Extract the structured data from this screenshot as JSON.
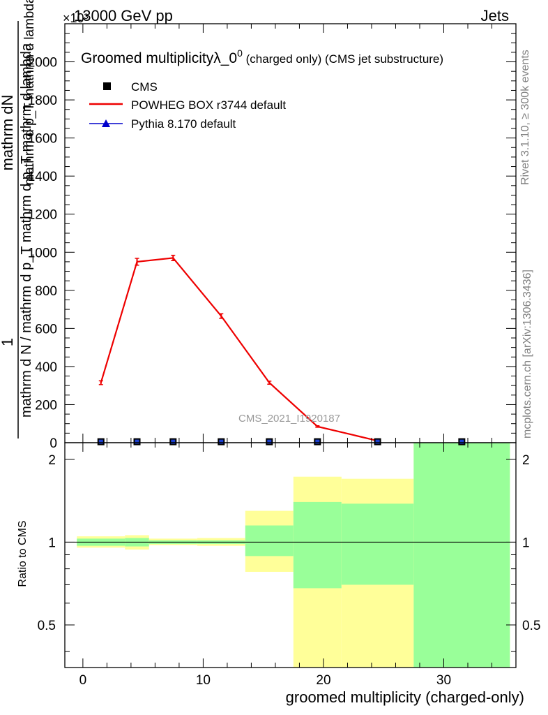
{
  "header": {
    "left": "13000 GeV pp",
    "right": "Jets",
    "exponent": "×10³"
  },
  "side": {
    "rivet": "Rivet 3.1.10, ≥ 300k events",
    "mcplots": "mcplots.cern.ch [arXiv:1306.3436]"
  },
  "chart_data": {
    "type": "line",
    "title": "Groomed multiplicityλ_0⁰ (charged only) (CMS jet substructure)",
    "title_main": "Groomed multiplicityλ_0",
    "title_sup": "0",
    "title_rest": " (charged only) (CMS jet substructure)",
    "watermark": "CMS_2021_I1920187",
    "xlabel": "groomed multiplicity (charged-only)",
    "ylabel_num": "1",
    "ylabel_num2": "mathrm dN",
    "ylabel_den": "mathrm d N / mathrm d p_T mathrm d p_T mathrm d lambda",
    "ylabel_den2": "mathrm d p_T  mathrm d lambda",
    "ratio_ylabel": "Ratio to CMS",
    "xlim": [
      -1.5,
      36
    ],
    "ylim": [
      0,
      2200
    ],
    "y_scale_note": "×10³",
    "xticks": [
      0,
      10,
      20,
      30
    ],
    "yticks": [
      0,
      200,
      400,
      600,
      800,
      1000,
      1200,
      1400,
      1600,
      1800,
      2000
    ],
    "ratio_ylim": [
      0.35,
      2.3
    ],
    "ratio_yticks": [
      0.5,
      1,
      2
    ],
    "ratio_yticklabels": [
      "0.5",
      "1",
      "2"
    ],
    "legend": [
      {
        "name": "CMS",
        "color": "#000000",
        "marker": "square"
      },
      {
        "name": "POWHEG BOX r3744 default",
        "color": "#ee0000",
        "marker": "line"
      },
      {
        "name": "Pythia 8.170 default",
        "color": "#0000cc",
        "marker": "triangle"
      }
    ],
    "series": [
      {
        "name": "CMS",
        "color": "#000000",
        "x": [
          1.5,
          4.5,
          7.5,
          11.5,
          15.5,
          19.5,
          24.5,
          31.5
        ],
        "y": [
          5,
          5,
          5,
          5,
          5,
          5,
          5,
          5
        ]
      },
      {
        "name": "POWHEG BOX r3744 default",
        "color": "#ee0000",
        "x": [
          1.5,
          4.5,
          7.5,
          11.5,
          15.5,
          19.5,
          24.5
        ],
        "y": [
          315,
          950,
          970,
          665,
          315,
          85,
          10
        ],
        "err": [
          10,
          18,
          14,
          12,
          8,
          4,
          2
        ]
      }
    ],
    "ratio_bands": [
      {
        "xlo": -0.5,
        "xhi": 3.5,
        "yel_lo": 0.955,
        "yel_hi": 1.05,
        "grn_lo": 0.97,
        "grn_hi": 1.03
      },
      {
        "xlo": 3.5,
        "xhi": 5.5,
        "yel_lo": 0.94,
        "yel_hi": 1.06,
        "grn_lo": 0.965,
        "grn_hi": 1.035
      },
      {
        "xlo": 5.5,
        "xhi": 9.5,
        "yel_lo": 0.975,
        "yel_hi": 1.03,
        "grn_lo": 0.985,
        "grn_hi": 1.015
      },
      {
        "xlo": 9.5,
        "xhi": 13.5,
        "yel_lo": 0.97,
        "yel_hi": 1.035,
        "grn_lo": 0.985,
        "grn_hi": 1.015
      },
      {
        "xlo": 13.5,
        "xhi": 17.5,
        "yel_lo": 0.78,
        "yel_hi": 1.3,
        "grn_lo": 0.89,
        "grn_hi": 1.15
      },
      {
        "xlo": 17.5,
        "xhi": 21.5,
        "yel_lo": 0.3,
        "yel_hi": 1.73,
        "grn_lo": 0.68,
        "grn_hi": 1.4
      },
      {
        "xlo": 21.5,
        "xhi": 27.5,
        "yel_lo": 0.3,
        "yel_hi": 1.7,
        "grn_lo": 0.7,
        "grn_hi": 1.38
      },
      {
        "xlo": 27.5,
        "xhi": 35.5,
        "yel_lo": 0.3,
        "yel_hi": 3.0,
        "grn_lo": 0.3,
        "grn_hi": 3.0
      }
    ],
    "colors": {
      "band_yellow": "#ffff99",
      "band_green": "#99ff99",
      "powheg": "#ee0000",
      "data": "#000000"
    }
  }
}
